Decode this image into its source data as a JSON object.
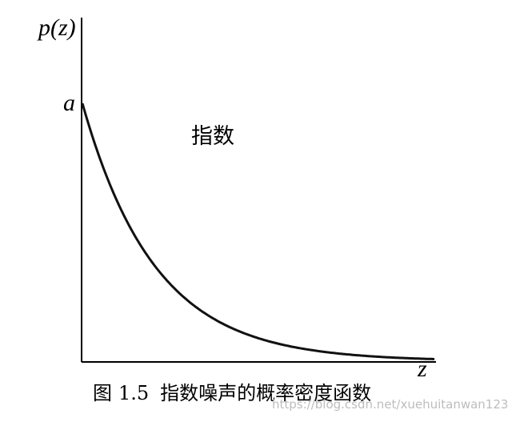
{
  "figure": {
    "y_axis_label": "p(z)",
    "x_axis_label": "z",
    "intercept_label": "a",
    "curve_annotation": "指数",
    "caption_prefix": "图",
    "caption_number": "1.5",
    "caption_title": "指数噪声的概率密度函数",
    "watermark": "https://blog.csdn.net/xuehuitanwan123"
  },
  "chart_data": {
    "type": "line",
    "function": "a * exp(-a * z)",
    "xlabel": "z",
    "ylabel": "p(z)",
    "y_intercept_label": "a",
    "annotation": "指数",
    "grid": false,
    "series_color": "#111111",
    "axis_color": "#000000"
  }
}
